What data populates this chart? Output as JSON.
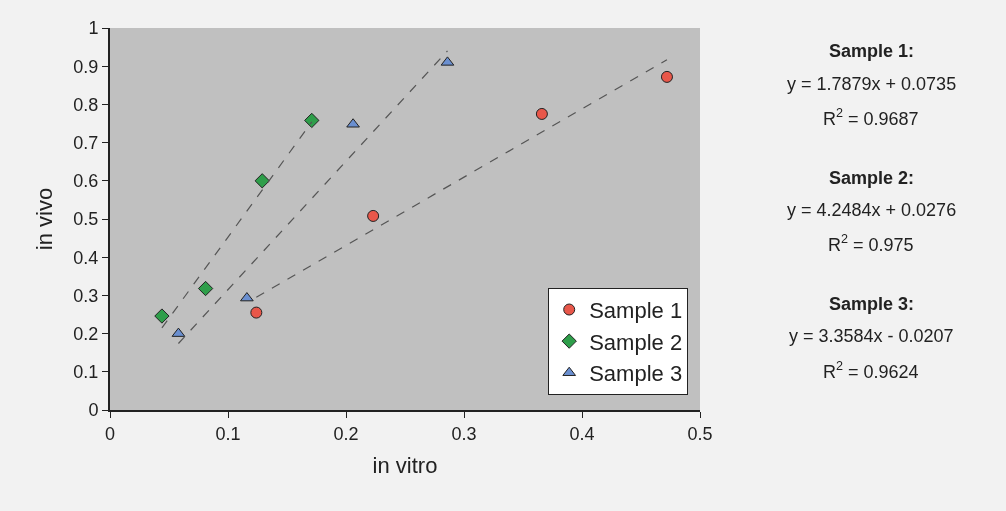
{
  "chart_data": {
    "type": "scatter",
    "xlabel": "in vitro",
    "ylabel": "in vivo",
    "xlim": [
      0,
      0.5
    ],
    "xticks": [
      0,
      0.1,
      0.2,
      0.3,
      0.4,
      0.5
    ],
    "ylim": [
      0,
      1
    ],
    "yticks": [
      0,
      0.1,
      0.2,
      0.3,
      0.4,
      0.5,
      0.6,
      0.7,
      0.8,
      0.9,
      1
    ],
    "grid": false,
    "legend": "bottom right",
    "series": [
      {
        "name": "Sample 1",
        "color": "#e8574a",
        "marker": "circle",
        "x": [
          0.124,
          0.223,
          0.366,
          0.472
        ],
        "values": [
          0.255,
          0.508,
          0.775,
          0.872
        ]
      },
      {
        "name": "Sample 2",
        "color": "#2e9e4a",
        "marker": "diamond",
        "x": [
          0.044,
          0.081,
          0.129,
          0.171
        ],
        "values": [
          0.246,
          0.318,
          0.6,
          0.758
        ]
      },
      {
        "name": "Sample 3",
        "color": "#6a8fd0",
        "marker": "triangle",
        "x": [
          0.058,
          0.116,
          0.206,
          0.286
        ],
        "values": [
          0.2,
          0.293,
          0.748,
          0.91
        ]
      },
      {
        "type": "line",
        "color": "#555555",
        "marker": "none",
        "line_style": "dashed",
        "x": [
          0.124,
          0.472
        ],
        "values": [
          0.295,
          0.917
        ]
      },
      {
        "type": "line",
        "color": "#555555",
        "marker": "none",
        "line_style": "dashed",
        "x": [
          0.044,
          0.171
        ],
        "values": [
          0.215,
          0.754
        ]
      },
      {
        "type": "line",
        "color": "#555555",
        "marker": "none",
        "line_style": "dashed",
        "x": [
          0.058,
          0.286
        ],
        "values": [
          0.174,
          0.94
        ]
      }
    ],
    "annotations": [
      "Sample 1:",
      "y = 1.7879x + 0.0735",
      "R$^{2}$ = 0.9687",
      "Sample 2:",
      "y = 4.2484x + 0.0276",
      "R$^{2}$ = 0.975",
      "Sample 3:",
      "y = 3.3584x - 0.0207",
      "R$^{2}$ = 0.9624"
    ]
  }
}
